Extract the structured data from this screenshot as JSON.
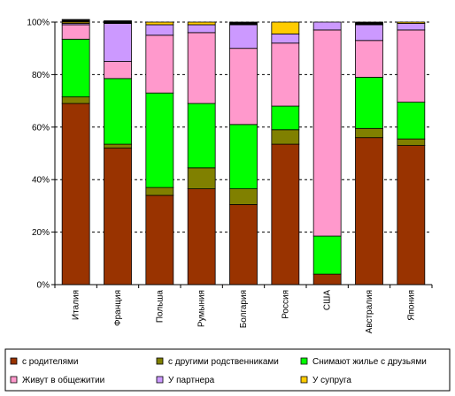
{
  "chart_data": {
    "type": "bar",
    "stacked": true,
    "percent": true,
    "categories": [
      "Италия",
      "Франция",
      "Польша",
      "Румыния",
      "Болгария",
      "Россия",
      "США",
      "Австралия",
      "Япония"
    ],
    "series": [
      {
        "name": "с родителями",
        "color": "#993300",
        "values": [
          69,
          52,
          34,
          36.5,
          30.5,
          53.5,
          4,
          56,
          53
        ]
      },
      {
        "name": "с другими родственниками",
        "color": "#808000",
        "values": [
          2.5,
          1.5,
          3,
          8,
          6,
          5.5,
          0,
          3.5,
          2.5
        ]
      },
      {
        "name": "Снимают жилье с друзьями",
        "color": "#00ff00",
        "values": [
          22,
          25,
          36,
          24.5,
          24.5,
          9,
          14.5,
          19.5,
          14
        ]
      },
      {
        "name": "Живут в общежитии",
        "color": "#ff99cc",
        "values": [
          5.5,
          6.5,
          22,
          27,
          29,
          24,
          78.5,
          14,
          27.5
        ]
      },
      {
        "name": "У партнера",
        "color": "#cc99ff",
        "values": [
          0.5,
          14.5,
          4,
          3,
          9,
          3.5,
          3,
          6,
          2.5
        ]
      },
      {
        "name": "У супруга",
        "color": "#ffcc00",
        "values": [
          0.5,
          0,
          1,
          1,
          0,
          4.5,
          0,
          0,
          0.5
        ]
      },
      {
        "name": "",
        "color": "#000000",
        "values": [
          1,
          1,
          0,
          0,
          1,
          0,
          0,
          1,
          0
        ]
      }
    ],
    "ylim": [
      0,
      100
    ],
    "yticks": [
      "0%",
      "20%",
      "40%",
      "60%",
      "80%",
      "100%"
    ],
    "grid": true,
    "legend_position": "bottom"
  }
}
